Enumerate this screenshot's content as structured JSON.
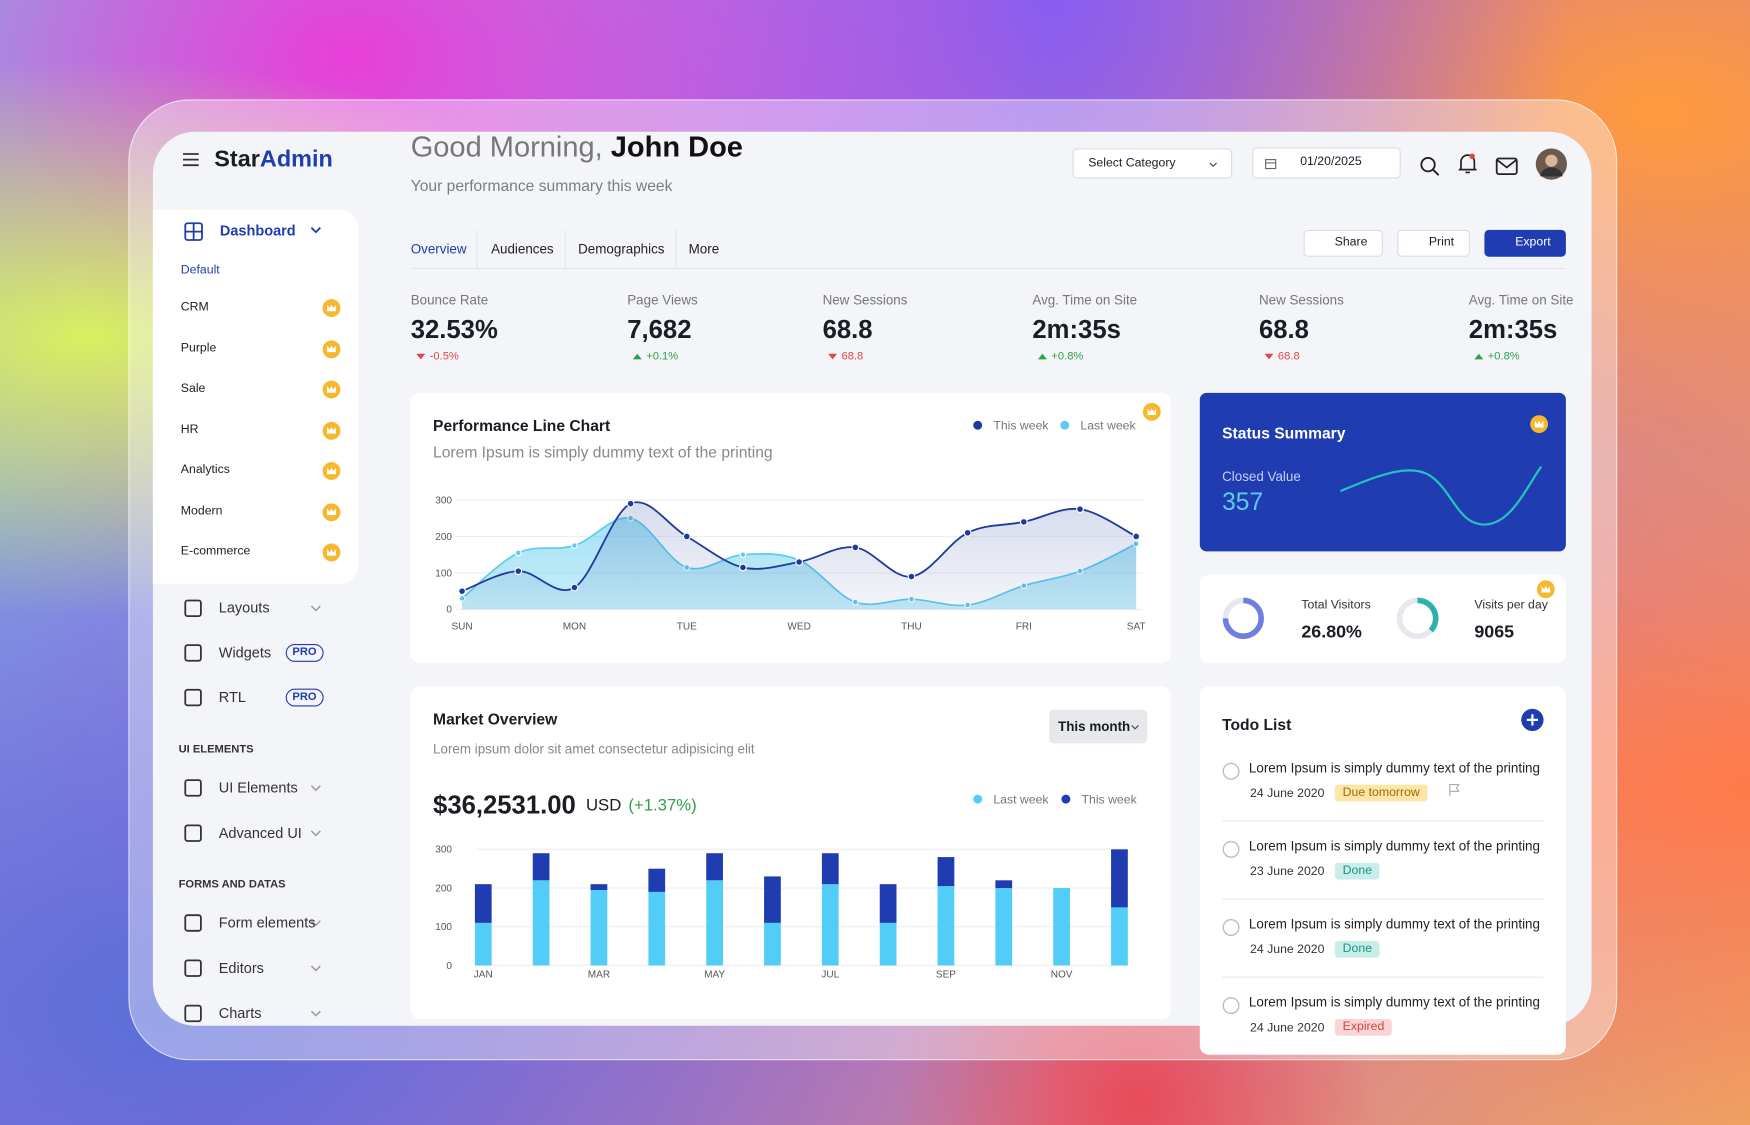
{
  "sidebar": {
    "logo": {
      "part1": "Star",
      "part2": "Admin"
    },
    "dashboard": "Dashboard",
    "section": "Default",
    "dashboard_items": [
      "CRM",
      "Purple",
      "Sale",
      "HR",
      "Analytics",
      "Modern",
      "E-commerce"
    ],
    "menu": [
      {
        "label": "Layouts"
      },
      {
        "label": "Widgets",
        "badge": "PRO"
      },
      {
        "label": "RTL",
        "badge": "PRO"
      }
    ],
    "groups": [
      {
        "title": "UI ELEMENTS",
        "items": [
          "UI Elements",
          "Advanced UI"
        ]
      },
      {
        "title": "FORMS AND DATAS",
        "items": [
          "Form elements",
          "Editors",
          "Charts"
        ]
      }
    ]
  },
  "header": {
    "greeting": "Good Morning,",
    "name": "John Doe",
    "subtitle": "Your performance summary this week",
    "category_select": "Select Category",
    "date": "01/20/2025"
  },
  "tabs": [
    "Overview",
    "Audiences",
    "Demographics",
    "More"
  ],
  "actions": [
    "Share",
    "Print",
    "Export"
  ],
  "stats": [
    {
      "label": "Bounce Rate",
      "value": "32.53%",
      "change": "-0.5%",
      "trend": "down"
    },
    {
      "label": "Page Views",
      "value": "7,682",
      "change": "+0.1%",
      "trend": "up"
    },
    {
      "label": "New Sessions",
      "value": "68.8",
      "change": "68.8",
      "trend": "down"
    },
    {
      "label": "Avg. Time on Site",
      "value": "2m:35s",
      "change": "+0.8%",
      "trend": "up"
    },
    {
      "label": "New Sessions",
      "value": "68.8",
      "change": "68.8",
      "trend": "down"
    },
    {
      "label": "Avg. Time on Site",
      "value": "2m:35s",
      "change": "+0.8%",
      "trend": "up"
    }
  ],
  "performance_chart": {
    "type": "line",
    "title": "Performance Line Chart",
    "subtitle": "Lorem Ipsum is simply dummy text of the printing",
    "categories": [
      "SUN",
      null,
      "MON",
      null,
      "TUE",
      null,
      "WED",
      null,
      "THU",
      null,
      "FRI",
      null,
      "SAT"
    ],
    "series": [
      {
        "name": "This week",
        "color": "#1e3a9a",
        "values": [
          50,
          105,
          60,
          290,
          200,
          115,
          130,
          170,
          90,
          210,
          240,
          275,
          200
        ]
      },
      {
        "name": "Last week",
        "color": "#5ccbed",
        "values": [
          30,
          155,
          175,
          250,
          115,
          150,
          135,
          20,
          28,
          12,
          65,
          105,
          180
        ]
      }
    ],
    "ylim": [
      0,
      300
    ],
    "yticks": [
      0,
      100,
      200,
      300
    ],
    "grid": true
  },
  "status_summary": {
    "title": "Status Summary",
    "label": "Closed Value",
    "value": 357
  },
  "visitors": [
    {
      "label": "Total Visitors",
      "value": "26.80%"
    },
    {
      "label": "Visits per day",
      "value": 9065
    }
  ],
  "market_overview": {
    "type": "bar",
    "stacked": true,
    "title": "Market Overview",
    "subtitle": "Lorem ipsum dolor sit amet consectetur adipisicing elit",
    "period": "This month",
    "amount": "$36,2531.00",
    "currency": "USD",
    "change": "(+1.37%)",
    "categories": [
      "JAN",
      null,
      "MAR",
      null,
      "MAY",
      null,
      "JUL",
      null,
      "SEP",
      null,
      "NOV",
      null
    ],
    "series": [
      {
        "name": "Last week",
        "color": "#52cdf7",
        "values": [
          110,
          220,
          195,
          190,
          220,
          110,
          210,
          110,
          205,
          200,
          200,
          150
        ]
      },
      {
        "name": "This week",
        "color": "#1f3cb0",
        "values": [
          100,
          70,
          15,
          60,
          70,
          120,
          80,
          100,
          75,
          20,
          0,
          150
        ]
      }
    ],
    "ylim": [
      0,
      300
    ],
    "yticks": [
      0,
      100,
      200,
      300
    ],
    "grid": true
  },
  "todo": {
    "title": "Todo List",
    "items": [
      {
        "text": "Lorem Ipsum is simply dummy text of the printing",
        "date": "24 June 2020",
        "status": "Due tomorrow"
      },
      {
        "text": "Lorem Ipsum is simply dummy text of the printing",
        "date": "23 June 2020",
        "status": "Done"
      },
      {
        "text": "Lorem Ipsum is simply dummy text of the printing",
        "date": "24 June 2020",
        "status": "Done"
      },
      {
        "text": "Lorem Ipsum is simply dummy text of the printing",
        "date": "24 June 2020",
        "status": "Expired"
      }
    ]
  }
}
